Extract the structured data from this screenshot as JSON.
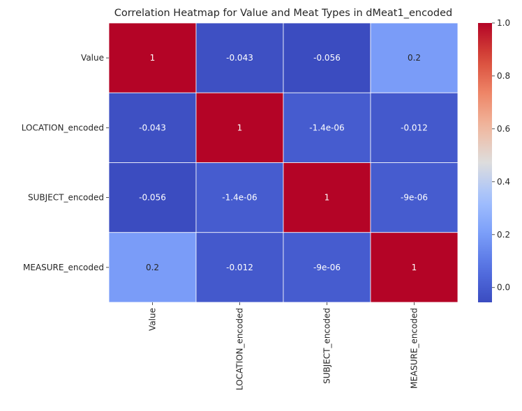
{
  "chart_data": {
    "type": "heatmap",
    "title": "Correlation Heatmap for Value and Meat Types in dMeat1_encoded",
    "row_labels": [
      "Value",
      "LOCATION_encoded",
      "SUBJECT_encoded",
      "MEASURE_encoded"
    ],
    "col_labels": [
      "Value",
      "LOCATION_encoded",
      "SUBJECT_encoded",
      "MEASURE_encoded"
    ],
    "values": [
      [
        1,
        -0.043,
        -0.056,
        0.2
      ],
      [
        -0.043,
        1,
        -1.4e-06,
        -0.012
      ],
      [
        -0.056,
        -1.4e-06,
        1,
        -9e-06
      ],
      [
        0.2,
        -0.012,
        -9e-06,
        1
      ]
    ],
    "annotations": [
      [
        "1",
        "-0.043",
        "-0.056",
        "0.2"
      ],
      [
        "-0.043",
        "1",
        "-1.4e-06",
        "-0.012"
      ],
      [
        "-0.056",
        "-1.4e-06",
        "1",
        "-9e-06"
      ],
      [
        "0.2",
        "-0.012",
        "-9e-06",
        "1"
      ]
    ],
    "colormap": "coolwarm",
    "vmin": -0.056,
    "vmax": 1,
    "colorbar_ticks": [
      0.0,
      0.2,
      0.4,
      0.6,
      0.8,
      1.0
    ],
    "colorbar_tick_labels": [
      "0.0",
      "0.2",
      "0.4",
      "0.6",
      "0.8",
      "1.0"
    ],
    "cell_border_color": "#ffffff"
  }
}
